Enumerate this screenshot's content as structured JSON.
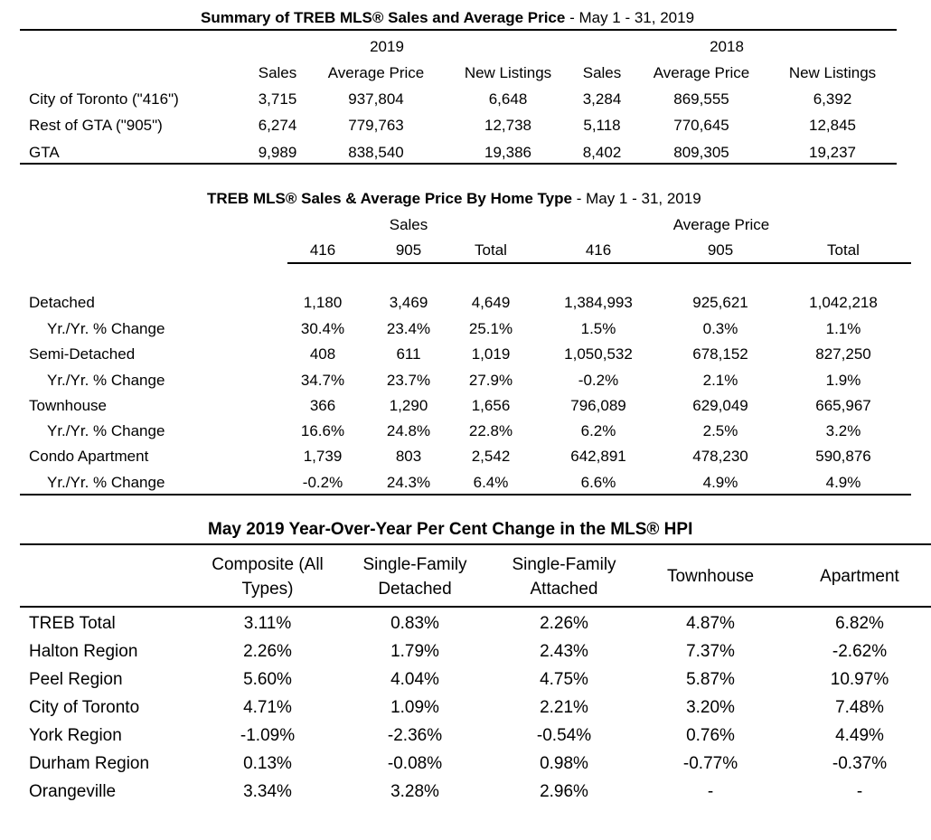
{
  "summary": {
    "title_bold": "Summary of TREB MLS® Sales and Average Price",
    "title_rest": " - May 1 - 31, 2019",
    "year_a": "2019",
    "year_b": "2018",
    "headers": [
      "Sales",
      "Average Price",
      "New Listings",
      "Sales",
      "Average Price",
      "New Listings"
    ],
    "rows": [
      {
        "label": "City of Toronto (\"416\")",
        "values": [
          "3,715",
          "937,804",
          "6,648",
          "3,284",
          "869,555",
          "6,392"
        ]
      },
      {
        "label": "Rest of GTA (\"905\")",
        "values": [
          "6,274",
          "779,763",
          "12,738",
          "5,118",
          "770,645",
          "12,845"
        ]
      },
      {
        "label": "GTA",
        "values": [
          "9,989",
          "838,540",
          "19,386",
          "8,402",
          "809,305",
          "19,237"
        ]
      }
    ]
  },
  "home_type": {
    "title_bold": "TREB MLS® Sales & Average Price  By Home Type",
    "title_rest": " - May 1 - 31, 2019",
    "group_sales": "Sales",
    "group_price": "Average Price",
    "headers": [
      "416",
      "905",
      "Total",
      "416",
      "905",
      "Total"
    ],
    "rows": [
      {
        "label": "Detached",
        "values": [
          "1,180",
          "3,469",
          "4,649",
          "1,384,993",
          "925,621",
          "1,042,218"
        ]
      },
      {
        "label": "Yr./Yr. % Change",
        "values": [
          "30.4%",
          "23.4%",
          "25.1%",
          "1.5%",
          "0.3%",
          "1.1%"
        ]
      },
      {
        "label": "Semi-Detached",
        "values": [
          "408",
          "611",
          "1,019",
          "1,050,532",
          "678,152",
          "827,250"
        ]
      },
      {
        "label": "Yr./Yr. % Change",
        "values": [
          "34.7%",
          "23.7%",
          "27.9%",
          "-0.2%",
          "2.1%",
          "1.9%"
        ]
      },
      {
        "label": "Townhouse",
        "values": [
          "366",
          "1,290",
          "1,656",
          "796,089",
          "629,049",
          "665,967"
        ]
      },
      {
        "label": "Yr./Yr. % Change",
        "values": [
          "16.6%",
          "24.8%",
          "22.8%",
          "6.2%",
          "2.5%",
          "3.2%"
        ]
      },
      {
        "label": "Condo Apartment",
        "values": [
          "1,739",
          "803",
          "2,542",
          "642,891",
          "478,230",
          "590,876"
        ]
      },
      {
        "label": "Yr./Yr. % Change",
        "values": [
          "-0.2%",
          "24.3%",
          "6.4%",
          "6.6%",
          "4.9%",
          "4.9%"
        ]
      }
    ]
  },
  "hpi": {
    "title": "May 2019 Year-Over-Year Per Cent Change in the MLS® HPI",
    "headers": [
      [
        "Composite (All",
        "Types)"
      ],
      [
        "Single-Family",
        "Detached"
      ],
      [
        "Single-Family",
        "Attached"
      ],
      [
        "Townhouse"
      ],
      [
        "Apartment"
      ]
    ],
    "rows": [
      {
        "label": "TREB Total",
        "values": [
          "3.11%",
          "0.83%",
          "2.26%",
          "4.87%",
          "6.82%"
        ]
      },
      {
        "label": "Halton Region",
        "values": [
          "2.26%",
          "1.79%",
          "2.43%",
          "7.37%",
          "-2.62%"
        ]
      },
      {
        "label": "Peel Region",
        "values": [
          "5.60%",
          "4.04%",
          "4.75%",
          "5.87%",
          "10.97%"
        ]
      },
      {
        "label": "City of Toronto",
        "values": [
          "4.71%",
          "1.09%",
          "2.21%",
          "3.20%",
          "7.48%"
        ]
      },
      {
        "label": "York Region",
        "values": [
          "-1.09%",
          "-2.36%",
          "-0.54%",
          "0.76%",
          "4.49%"
        ]
      },
      {
        "label": "Durham Region",
        "values": [
          "0.13%",
          "-0.08%",
          "0.98%",
          "-0.77%",
          "-0.37%"
        ]
      },
      {
        "label": "Orangeville",
        "values": [
          "3.34%",
          "3.28%",
          "2.96%",
          "-",
          "-"
        ]
      }
    ]
  }
}
